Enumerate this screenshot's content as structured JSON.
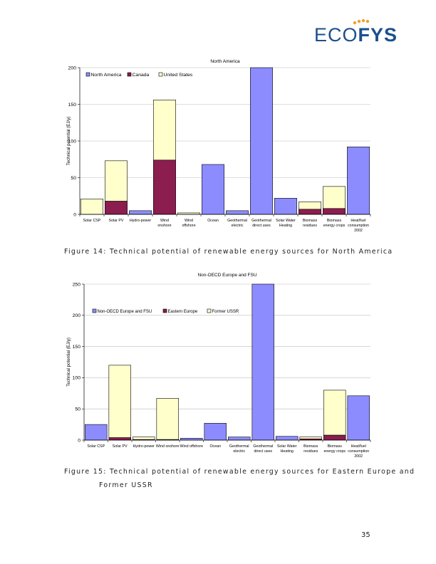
{
  "logo": {
    "part1": "ECO",
    "part2": "FYS"
  },
  "chart_data": [
    {
      "type": "bar",
      "stacked": true,
      "title": "North America",
      "ylabel": "Technical potential (EJ/y)",
      "xlabel": "",
      "ylim": [
        0,
        200
      ],
      "yticks": [
        0,
        50,
        100,
        150,
        200
      ],
      "grid": true,
      "legend": "top-left",
      "categories": [
        [
          "Solar CSP"
        ],
        [
          "Solar PV"
        ],
        [
          "Hydro-power"
        ],
        [
          "Wind",
          "onshore"
        ],
        [
          "Wind",
          "offshore"
        ],
        [
          "Ocean"
        ],
        [
          "Geothermal",
          "electric"
        ],
        [
          "Geothermal",
          "direct uses"
        ],
        [
          "Solar Water",
          "Heating"
        ],
        [
          "Biomass",
          "residues"
        ],
        [
          "Biomass",
          "energy crops"
        ],
        [
          "Heat/fuel",
          "consumption",
          "2002"
        ]
      ],
      "series": [
        {
          "name": "North America",
          "color": "#8c8cff",
          "values": [
            0,
            0,
            5,
            0,
            0,
            68,
            5,
            200,
            22,
            0,
            0,
            92
          ]
        },
        {
          "name": "Canada",
          "color": "#8b1d4f",
          "values": [
            0,
            18,
            0,
            74,
            0,
            0,
            0,
            0,
            0,
            7,
            8,
            0
          ]
        },
        {
          "name": "United States",
          "color": "#ffffcc",
          "values": [
            21,
            55,
            0,
            82,
            2,
            0,
            0,
            0,
            0,
            10,
            30,
            0
          ]
        }
      ]
    },
    {
      "type": "bar",
      "stacked": true,
      "title": "Non-OECD Europe and FSU",
      "ylabel": "Technical potential (EJ/y)",
      "xlabel": "",
      "ylim": [
        0,
        250
      ],
      "yticks": [
        0,
        50,
        100,
        150,
        200,
        250
      ],
      "grid": true,
      "legend": "top-left",
      "categories": [
        [
          "Solar CSP"
        ],
        [
          "Solar PV"
        ],
        [
          "Hydro-power"
        ],
        [
          "Wind onshore"
        ],
        [
          "Wind offshore"
        ],
        [
          "Ocean"
        ],
        [
          "Geothermal",
          "electric"
        ],
        [
          "Geothermal",
          "direct uses"
        ],
        [
          "Solar Water",
          "Heating"
        ],
        [
          "Biomass",
          "residues"
        ],
        [
          "Biomass",
          "energy crops"
        ],
        [
          "Heat/fuel",
          "consumption",
          "2002"
        ]
      ],
      "series": [
        {
          "name": "Non-OECD Europe and FSU",
          "color": "#8c8cff",
          "values": [
            25,
            0,
            0,
            0,
            3,
            27,
            5,
            250,
            6,
            0,
            0,
            71
          ]
        },
        {
          "name": "Eastern Europe",
          "color": "#8b1d4f",
          "values": [
            0,
            4,
            1,
            1,
            0,
            0,
            0,
            0,
            0,
            2,
            8,
            0
          ]
        },
        {
          "name": "Former USSR",
          "color": "#ffffcc",
          "values": [
            0,
            116,
            4,
            66,
            0,
            0,
            0,
            0,
            0,
            3,
            72,
            0
          ]
        }
      ]
    }
  ],
  "captions": {
    "fig14": "Figure 14: Technical potential of renewable energy sources for North America",
    "fig15_line1": "Figure 15: Technical potential of renewable energy sources for Eastern Europe and",
    "fig15_line2": "Former USSR"
  },
  "page_number": "35"
}
